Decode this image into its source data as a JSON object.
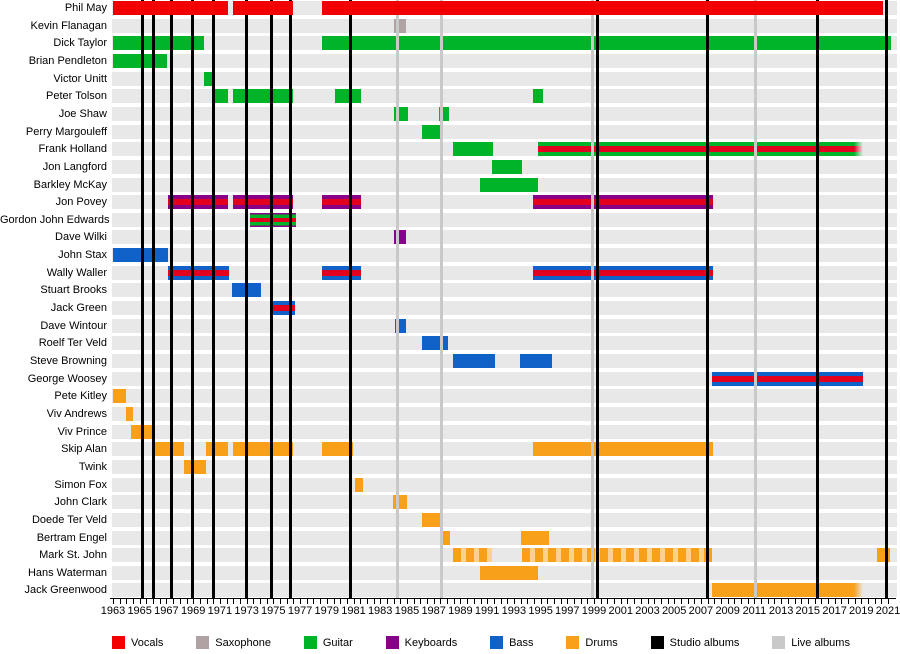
{
  "legend": [
    {
      "label": "Vocals",
      "key": "vocals"
    },
    {
      "label": "Saxophone",
      "key": "saxophone"
    },
    {
      "label": "Guitar",
      "key": "guitar"
    },
    {
      "label": "Keyboards",
      "key": "keyboards"
    },
    {
      "label": "Bass",
      "key": "bass"
    },
    {
      "label": "Drums",
      "key": "drums"
    },
    {
      "label": "Studio albums",
      "key": "studio"
    },
    {
      "label": "Live albums",
      "key": "live"
    }
  ],
  "colors": {
    "vocals": "#f20000",
    "saxophone": "#b0a2a2",
    "guitar": "#00b42a",
    "keyboards": "#870087",
    "bass": "#1062c8",
    "drums": "#f9a01b",
    "studio": "#000000",
    "live": "#c9c9c9",
    "row_band": "#e8e8e8",
    "vocals_stripe": "#e2001e"
  },
  "chart_data": {
    "type": "timeline",
    "axis": {
      "start": 1963,
      "end": 2021,
      "label_step": 2,
      "minor_tick_step": 0.5,
      "tick_labels": [
        1963,
        1965,
        1967,
        1969,
        1971,
        1973,
        1975,
        1977,
        1979,
        1981,
        1983,
        1985,
        1987,
        1989,
        1991,
        1993,
        1995,
        1997,
        1999,
        2001,
        2003,
        2005,
        2007,
        2009,
        2011,
        2013,
        2015,
        2017,
        2019,
        2021
      ]
    },
    "studio_albums": [
      1965.22,
      1966.06,
      1967.4,
      1968.97,
      1970.5,
      1973.0,
      1974.85,
      1976.28,
      1980.75,
      1999.29,
      2007.5,
      2015.7,
      2020.92
    ],
    "live_albums": [
      1984.3,
      1987.6,
      1998.85,
      2011.1
    ],
    "members": [
      {
        "name": "Phil May",
        "bars": [
          {
            "start": 1963.0,
            "end": 1971.61,
            "style": "vocals"
          },
          {
            "start": 1971.98,
            "end": 1976.47,
            "style": "vocals"
          },
          {
            "start": 1978.64,
            "end": 2020.62,
            "style": "vocals"
          }
        ]
      },
      {
        "name": "Kevin Flanagan",
        "bars": [
          {
            "start": 1984.03,
            "end": 1984.93,
            "style": "sax"
          }
        ]
      },
      {
        "name": "Dick Taylor",
        "bars": [
          {
            "start": 1963.0,
            "end": 1969.81,
            "style": "guitar"
          },
          {
            "start": 1978.64,
            "end": 2021.22,
            "style": "guitar"
          }
        ]
      },
      {
        "name": "Brian Pendleton",
        "bars": [
          {
            "start": 1963.0,
            "end": 1967.04,
            "style": "guitar"
          }
        ]
      },
      {
        "name": "Victor Unitt",
        "bars": [
          {
            "start": 1969.81,
            "end": 1970.48,
            "style": "guitar"
          }
        ]
      },
      {
        "name": "Peter Tolson",
        "bars": [
          {
            "start": 1970.48,
            "end": 1971.61,
            "style": "guitar"
          },
          {
            "start": 1971.98,
            "end": 1976.47,
            "style": "guitar"
          },
          {
            "start": 1979.61,
            "end": 1981.56,
            "style": "guitar"
          },
          {
            "start": 1994.43,
            "end": 1995.18,
            "style": "guitar"
          }
        ]
      },
      {
        "name": "Joe Shaw",
        "bars": [
          {
            "start": 1984.03,
            "end": 1985.08,
            "style": "guitar"
          },
          {
            "start": 1987.4,
            "end": 1988.15,
            "style": "guitar"
          }
        ]
      },
      {
        "name": "Perry Margouleff",
        "bars": [
          {
            "start": 1986.12,
            "end": 1987.7,
            "style": "guitar"
          }
        ]
      },
      {
        "name": "Frank Holland",
        "bars": [
          {
            "start": 1988.45,
            "end": 1991.44,
            "style": "guitar"
          },
          {
            "start": 1994.81,
            "end": 2019.13,
            "style": "guitar+vocals",
            "fade": true
          }
        ]
      },
      {
        "name": "Jon Langford",
        "bars": [
          {
            "start": 1991.36,
            "end": 1993.61,
            "style": "guitar"
          }
        ]
      },
      {
        "name": "Barkley McKay",
        "bars": [
          {
            "start": 1990.47,
            "end": 1994.81,
            "style": "guitar"
          }
        ]
      },
      {
        "name": "Jon Povey",
        "bars": [
          {
            "start": 1967.12,
            "end": 1971.61,
            "style": "keyboards+vocals"
          },
          {
            "start": 1971.98,
            "end": 1976.47,
            "style": "keyboards+vocals"
          },
          {
            "start": 1978.64,
            "end": 1981.56,
            "style": "keyboards+vocals"
          },
          {
            "start": 1994.43,
            "end": 2007.9,
            "style": "keyboards+vocals"
          }
        ]
      },
      {
        "name": "Gordon John Edwards",
        "bars": [
          {
            "start": 1973.25,
            "end": 1976.7,
            "style": "keyboards+guitar+vocals"
          }
        ]
      },
      {
        "name": "Dave Wilki",
        "bars": [
          {
            "start": 1984.03,
            "end": 1984.93,
            "style": "keyboards"
          }
        ]
      },
      {
        "name": "John Stax",
        "bars": [
          {
            "start": 1963.0,
            "end": 1967.12,
            "style": "bass"
          }
        ]
      },
      {
        "name": "Wally Waller",
        "bars": [
          {
            "start": 1967.12,
            "end": 1971.68,
            "style": "bass+vocals"
          },
          {
            "start": 1978.64,
            "end": 1981.56,
            "style": "bass+vocals"
          },
          {
            "start": 1994.43,
            "end": 2007.9,
            "style": "bass+vocals"
          }
        ]
      },
      {
        "name": "Stuart Brooks",
        "bars": [
          {
            "start": 1971.9,
            "end": 1974.08,
            "style": "bass"
          }
        ]
      },
      {
        "name": "Jack Green",
        "bars": [
          {
            "start": 1974.97,
            "end": 1976.62,
            "style": "bass+vocals"
          }
        ]
      },
      {
        "name": "Dave Wintour",
        "bars": [
          {
            "start": 1984.1,
            "end": 1984.9,
            "style": "bass"
          }
        ]
      },
      {
        "name": "Roelf Ter Veld",
        "bars": [
          {
            "start": 1986.12,
            "end": 1988.07,
            "style": "bass"
          }
        ]
      },
      {
        "name": "Steve Browning",
        "bars": [
          {
            "start": 1988.45,
            "end": 1991.59,
            "style": "bass"
          },
          {
            "start": 1993.46,
            "end": 1995.86,
            "style": "bass"
          }
        ]
      },
      {
        "name": "George Woosey",
        "bars": [
          {
            "start": 2007.83,
            "end": 2019.13,
            "style": "bass+vocals"
          }
        ]
      },
      {
        "name": "Pete Kitley",
        "bars": [
          {
            "start": 1963.0,
            "end": 1963.97,
            "style": "drums"
          }
        ]
      },
      {
        "name": "Viv Andrews",
        "bars": [
          {
            "start": 1963.97,
            "end": 1964.5,
            "style": "drums"
          }
        ]
      },
      {
        "name": "Viv Prince",
        "bars": [
          {
            "start": 1964.35,
            "end": 1965.99,
            "style": "drums"
          }
        ]
      },
      {
        "name": "Skip Alan",
        "bars": [
          {
            "start": 1965.92,
            "end": 1968.31,
            "style": "drums"
          },
          {
            "start": 1969.96,
            "end": 1971.61,
            "style": "drums"
          },
          {
            "start": 1971.98,
            "end": 1976.47,
            "style": "drums"
          },
          {
            "start": 1978.64,
            "end": 1980.96,
            "style": "drums"
          },
          {
            "start": 1994.43,
            "end": 2007.9,
            "style": "drums"
          }
        ]
      },
      {
        "name": "Twink",
        "bars": [
          {
            "start": 1968.31,
            "end": 1969.96,
            "style": "drums"
          }
        ]
      },
      {
        "name": "Simon Fox",
        "bars": [
          {
            "start": 1981.11,
            "end": 1981.71,
            "style": "drums"
          }
        ]
      },
      {
        "name": "John Clark",
        "bars": [
          {
            "start": 1983.95,
            "end": 1985.0,
            "style": "drums"
          }
        ]
      },
      {
        "name": "Doede Ter Veld",
        "bars": [
          {
            "start": 1986.12,
            "end": 1987.62,
            "style": "drums"
          }
        ]
      },
      {
        "name": "Bertram Engel",
        "bars": [
          {
            "start": 1987.62,
            "end": 1988.22,
            "style": "drums"
          },
          {
            "start": 1993.53,
            "end": 1995.63,
            "style": "drums"
          }
        ]
      },
      {
        "name": "Mark St. John",
        "bars": [
          {
            "start": 1988.45,
            "end": 1991.36,
            "style": "drums",
            "light": true
          },
          {
            "start": 1993.61,
            "end": 2007.83,
            "style": "drums",
            "light": true
          },
          {
            "start": 2020.17,
            "end": 2021.14,
            "style": "drums"
          }
        ]
      },
      {
        "name": "Hans Waterman",
        "bars": [
          {
            "start": 1990.47,
            "end": 1994.81,
            "style": "drums"
          }
        ]
      },
      {
        "name": "Jack Greenwood",
        "bars": [
          {
            "start": 2007.83,
            "end": 2019.13,
            "style": "drums",
            "fade": true
          }
        ]
      }
    ]
  }
}
